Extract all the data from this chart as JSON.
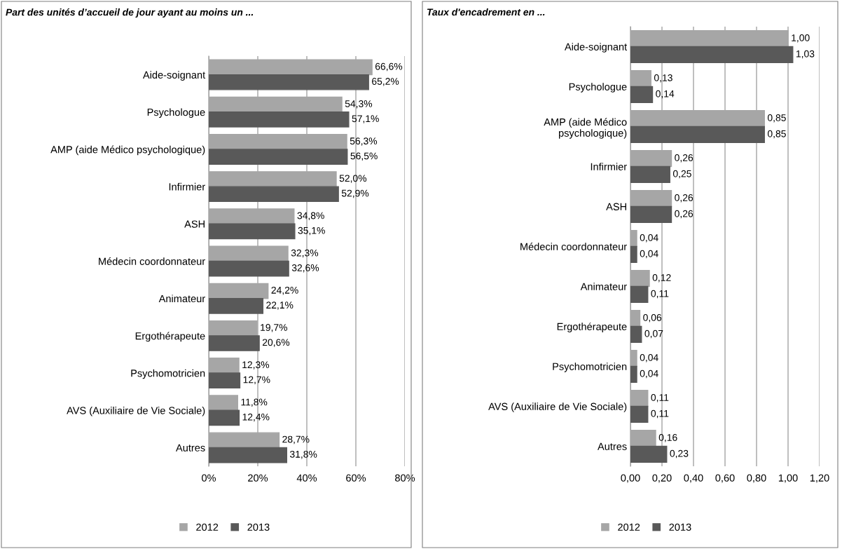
{
  "chart_data": [
    {
      "type": "bar",
      "orientation": "horizontal",
      "title": "Part des unités d’accueil de jour ayant au moins un ...",
      "categories": [
        "Aide-soignant",
        "Psychologue",
        "AMP (aide Médico psychologique)",
        "Infirmier",
        "ASH",
        "Médecin coordonnateur",
        "Animateur",
        "Ergothérapeute",
        "Psychomotricien",
        "AVS (Auxiliaire de Vie Sociale)",
        "Autres"
      ],
      "series": [
        {
          "name": "2012",
          "color": "#a6a6a6",
          "values": [
            66.6,
            54.3,
            56.3,
            52.0,
            34.8,
            32.3,
            24.2,
            19.7,
            12.3,
            11.8,
            28.7
          ],
          "value_labels": [
            "66,6%",
            "54,3%",
            "56,3%",
            "52,0%",
            "34,8%",
            "32,3%",
            "24,2%",
            "19,7%",
            "12,3%",
            "11,8%",
            "28,7%"
          ]
        },
        {
          "name": "2013",
          "color": "#595959",
          "values": [
            65.2,
            57.1,
            56.5,
            52.9,
            35.1,
            32.6,
            22.1,
            20.6,
            12.7,
            12.4,
            31.8
          ],
          "value_labels": [
            "65,2%",
            "57,1%",
            "56,5%",
            "52,9%",
            "35,1%",
            "32,6%",
            "22,1%",
            "20,6%",
            "12,7%",
            "12,4%",
            "31,8%"
          ]
        }
      ],
      "xlim": [
        0,
        80
      ],
      "xticks": [
        {
          "value": 0,
          "label": "0%"
        },
        {
          "value": 20,
          "label": "20%"
        },
        {
          "value": 40,
          "label": "40%"
        },
        {
          "value": 60,
          "label": "60%"
        },
        {
          "value": 80,
          "label": "80%"
        }
      ],
      "grid": "x",
      "legend": "bottom"
    },
    {
      "type": "bar",
      "orientation": "horizontal",
      "title": "Taux d'encadrement en ...",
      "categories": [
        "Aide-soignant",
        "Psychologue",
        "AMP (aide Médico\npsychologique)",
        "Infirmier",
        "ASH",
        "Médecin coordonnateur",
        "Animateur",
        "Ergothérapeute",
        "Psychomotricien",
        "AVS (Auxiliaire de Vie Sociale)",
        "Autres"
      ],
      "series": [
        {
          "name": "2012",
          "color": "#a6a6a6",
          "values": [
            1.0,
            0.13,
            0.85,
            0.26,
            0.26,
            0.04,
            0.12,
            0.06,
            0.04,
            0.11,
            0.16
          ],
          "value_labels": [
            "1,00",
            "0,13",
            "0,85",
            "0,26",
            "0,26",
            "0,04",
            "0,12",
            "0,06",
            "0,04",
            "0,11",
            "0,16"
          ]
        },
        {
          "name": "2013",
          "color": "#595959",
          "values": [
            1.03,
            0.14,
            0.85,
            0.25,
            0.26,
            0.04,
            0.11,
            0.07,
            0.04,
            0.11,
            0.23
          ],
          "value_labels": [
            "1,03",
            "0,14",
            "0,85",
            "0,25",
            "0,26",
            "0,04",
            "0,11",
            "0,07",
            "0,04",
            "0,11",
            "0,23"
          ]
        }
      ],
      "xlim": [
        0,
        1.2
      ],
      "xticks": [
        {
          "value": 0,
          "label": "0,00"
        },
        {
          "value": 0.2,
          "label": "0,20"
        },
        {
          "value": 0.4,
          "label": "0,40"
        },
        {
          "value": 0.6,
          "label": "0,60"
        },
        {
          "value": 0.8,
          "label": "0,80"
        },
        {
          "value": 1.0,
          "label": "1,00"
        },
        {
          "value": 1.2,
          "label": "1,20"
        }
      ],
      "grid": "x",
      "legend": "bottom"
    }
  ]
}
